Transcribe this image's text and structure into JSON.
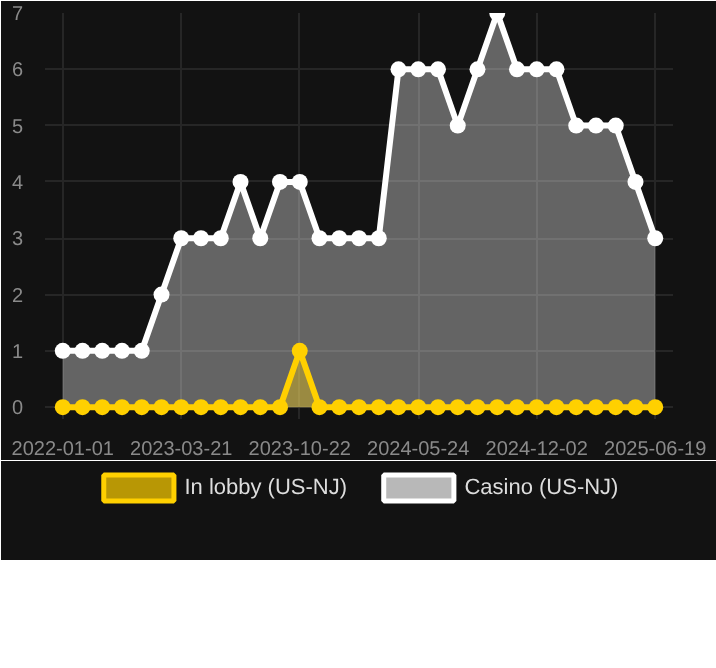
{
  "chart_data": {
    "type": "area",
    "categories": [
      "2022-01-01",
      null,
      null,
      null,
      null,
      null,
      "2023-03-21",
      null,
      null,
      null,
      null,
      null,
      "2023-10-22",
      null,
      null,
      null,
      null,
      null,
      "2024-05-24",
      null,
      null,
      null,
      null,
      null,
      "2024-12-02",
      null,
      null,
      null,
      null,
      null,
      "2025-06-19"
    ],
    "series": [
      {
        "name": "In lobby (US-NJ)",
        "color": "#ffd000",
        "values": [
          0,
          0,
          0,
          0,
          0,
          0,
          0,
          0,
          0,
          0,
          0,
          0,
          1,
          0,
          0,
          0,
          0,
          0,
          0,
          0,
          0,
          0,
          0,
          0,
          0,
          0,
          0,
          0,
          0,
          0,
          0
        ]
      },
      {
        "name": "Casino (US-NJ)",
        "color": "#ffffff",
        "values": [
          1,
          1,
          1,
          1,
          1,
          2,
          3,
          3,
          3,
          4,
          3,
          4,
          4,
          3,
          3,
          3,
          3,
          6,
          6,
          6,
          5,
          6,
          7,
          6,
          6,
          6,
          5,
          5,
          5,
          4,
          3
        ]
      }
    ],
    "ylim": [
      0,
      7
    ],
    "yticks": [
      0,
      1,
      2,
      3,
      4,
      5,
      6,
      7
    ],
    "grid": true,
    "legend": "bottom",
    "marker": "circle"
  }
}
